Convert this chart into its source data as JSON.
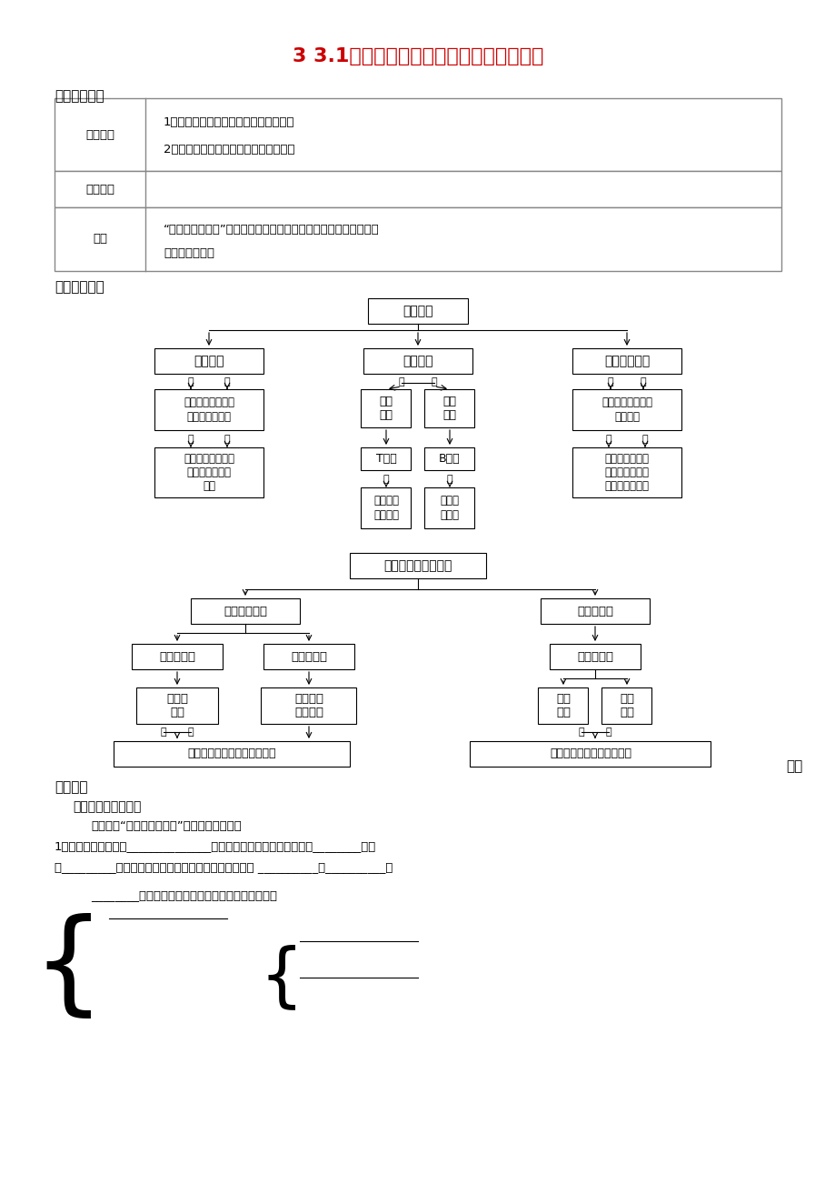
{
  "title": "3 3.1人体对抗病原体感染的非特异性防卫",
  "title_color": "#CC0000",
  "bg_color": "#FFFFFF",
  "text_color": "#000000",
  "section1_title": "一、目标导航",
  "section2_title": "二、知识网络",
  "bottom_text1": "一、免疫系统的组成",
  "bottom_text2": "阅读课本“免疫系统的组成”，完成下列问题：",
  "bottom_text3": "1、免疫是机体的一种______________功能。通过免疫，机体能够识别________、排",
  "bottom_text4": "除_________，以维持内环境的平衡和稳定。免疫可分为 __________和__________。",
  "bottom_bracket_text": "________（免疫细胞生成、成熟或集中分布的场所）"
}
